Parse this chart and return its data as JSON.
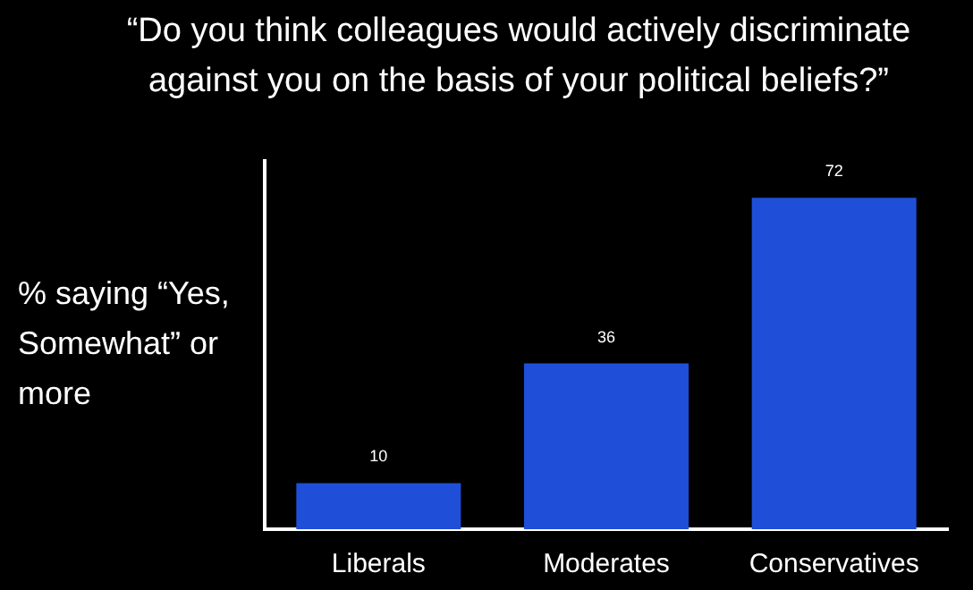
{
  "chart_data": {
    "type": "bar",
    "title": "“Do you think colleagues would actively discriminate against you on the basis of your political beliefs?”",
    "ylabel": "% saying “Yes, Somewhat” or more",
    "categories": [
      "Liberals",
      "Moderates",
      "Conservatives"
    ],
    "values": [
      10,
      36,
      72
    ],
    "color": "#1f4fd8",
    "data_labels": true,
    "grid": false,
    "legend": false,
    "tick_labels": "x"
  }
}
